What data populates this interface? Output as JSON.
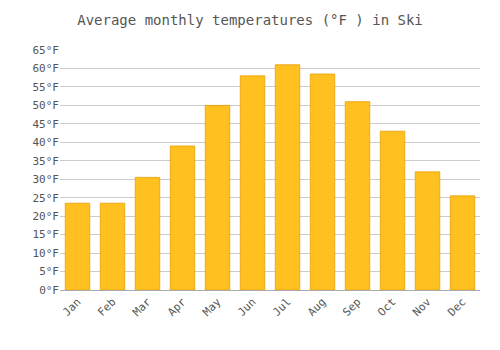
{
  "chart_data": {
    "type": "bar",
    "title": "Average monthly temperatures (°F ) in Ski",
    "categories": [
      "Jan",
      "Feb",
      "Mar",
      "Apr",
      "May",
      "Jun",
      "Jul",
      "Aug",
      "Sep",
      "Oct",
      "Nov",
      "Dec"
    ],
    "values": [
      23.5,
      23.5,
      30.5,
      39.0,
      50.0,
      58.0,
      61.0,
      58.5,
      51.0,
      43.0,
      32.0,
      25.5
    ],
    "color": "#FFC020",
    "ylim": [
      0,
      65
    ],
    "yticks": [
      {
        "value": 0,
        "label": "0°F"
      },
      {
        "value": 5,
        "label": "5°F"
      },
      {
        "value": 10,
        "label": "10°F"
      },
      {
        "value": 15,
        "label": "15°F"
      },
      {
        "value": 20,
        "label": "20°F"
      },
      {
        "value": 25,
        "label": "25°F"
      },
      {
        "value": 30,
        "label": "30°F"
      },
      {
        "value": 35,
        "label": "35°F"
      },
      {
        "value": 40,
        "label": "40°F"
      },
      {
        "value": 45,
        "label": "45°F"
      },
      {
        "value": 50,
        "label": "50°F"
      },
      {
        "value": 55,
        "label": "55°F"
      },
      {
        "value": 60,
        "label": "60°F"
      },
      {
        "value": 65,
        "label": "65°F"
      }
    ],
    "grid": true
  }
}
